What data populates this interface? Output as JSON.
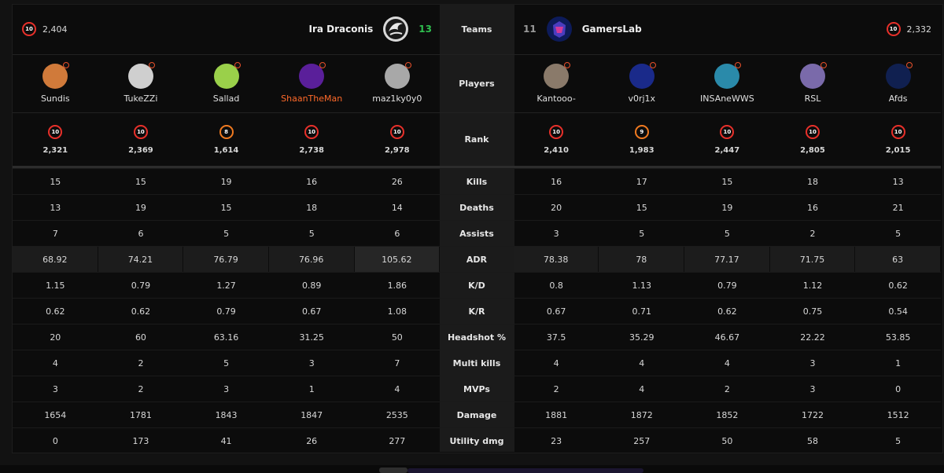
{
  "header": {
    "left_team": {
      "name": "Ira Draconis",
      "score": "13",
      "elo": "2,404",
      "level": "10"
    },
    "right_team": {
      "name": "GamersLab",
      "score": "11",
      "elo": "2,332",
      "level": "10"
    },
    "center_teams": "Teams",
    "center_players": "Players",
    "center_rank": "Rank"
  },
  "players_left": [
    {
      "name": "Sundis",
      "level": "10",
      "elo": "2,321",
      "highlight": false
    },
    {
      "name": "TukeZZi",
      "level": "10",
      "elo": "2,369",
      "highlight": false
    },
    {
      "name": "Sallad",
      "level": "8",
      "elo": "1,614",
      "highlight": false
    },
    {
      "name": "ShaanTheMan",
      "level": "10",
      "elo": "2,738",
      "highlight": true
    },
    {
      "name": "maz1ky0y0",
      "level": "10",
      "elo": "2,978",
      "highlight": false
    }
  ],
  "players_right": [
    {
      "name": "Kantooo-",
      "level": "10",
      "elo": "2,410"
    },
    {
      "name": "v0rj1x",
      "level": "9",
      "elo": "1,983"
    },
    {
      "name": "INSAneWWS",
      "level": "10",
      "elo": "2,447"
    },
    {
      "name": "RSL",
      "level": "10",
      "elo": "2,805"
    },
    {
      "name": "Afds",
      "level": "10",
      "elo": "2,015"
    }
  ],
  "stats": [
    {
      "label": "Kills",
      "left": [
        "15",
        "15",
        "19",
        "16",
        "26"
      ],
      "right": [
        "16",
        "17",
        "15",
        "18",
        "13"
      ]
    },
    {
      "label": "Deaths",
      "left": [
        "13",
        "19",
        "15",
        "18",
        "14"
      ],
      "right": [
        "20",
        "15",
        "19",
        "16",
        "21"
      ]
    },
    {
      "label": "Assists",
      "left": [
        "7",
        "6",
        "5",
        "5",
        "6"
      ],
      "right": [
        "3",
        "5",
        "5",
        "2",
        "5"
      ]
    },
    {
      "label": "ADR",
      "left": [
        "68.92",
        "74.21",
        "76.79",
        "76.96",
        "105.62"
      ],
      "right": [
        "78.38",
        "78",
        "77.17",
        "71.75",
        "63"
      ]
    },
    {
      "label": "K/D",
      "left": [
        "1.15",
        "0.79",
        "1.27",
        "0.89",
        "1.86"
      ],
      "right": [
        "0.8",
        "1.13",
        "0.79",
        "1.12",
        "0.62"
      ]
    },
    {
      "label": "K/R",
      "left": [
        "0.62",
        "0.62",
        "0.79",
        "0.67",
        "1.08"
      ],
      "right": [
        "0.67",
        "0.71",
        "0.62",
        "0.75",
        "0.54"
      ]
    },
    {
      "label": "Headshot %",
      "left": [
        "20",
        "60",
        "63.16",
        "31.25",
        "50"
      ],
      "right": [
        "37.5",
        "35.29",
        "46.67",
        "22.22",
        "53.85"
      ]
    },
    {
      "label": "Multi kills",
      "left": [
        "4",
        "2",
        "5",
        "3",
        "7"
      ],
      "right": [
        "4",
        "4",
        "4",
        "3",
        "1"
      ]
    },
    {
      "label": "MVPs",
      "left": [
        "3",
        "2",
        "3",
        "1",
        "4"
      ],
      "right": [
        "2",
        "4",
        "2",
        "3",
        "0"
      ]
    },
    {
      "label": "Damage",
      "left": [
        "1654",
        "1781",
        "1843",
        "1847",
        "2535"
      ],
      "right": [
        "1881",
        "1872",
        "1852",
        "1722",
        "1512"
      ]
    },
    {
      "label": "Utility dmg",
      "left": [
        "0",
        "173",
        "41",
        "26",
        "277"
      ],
      "right": [
        "23",
        "257",
        "50",
        "58",
        "5"
      ]
    }
  ],
  "colors": {
    "accent_orange": "#ff6a2a",
    "level_red": "#e8302a",
    "level_orange": "#f07a20",
    "score_win": "#2fbf4f"
  }
}
